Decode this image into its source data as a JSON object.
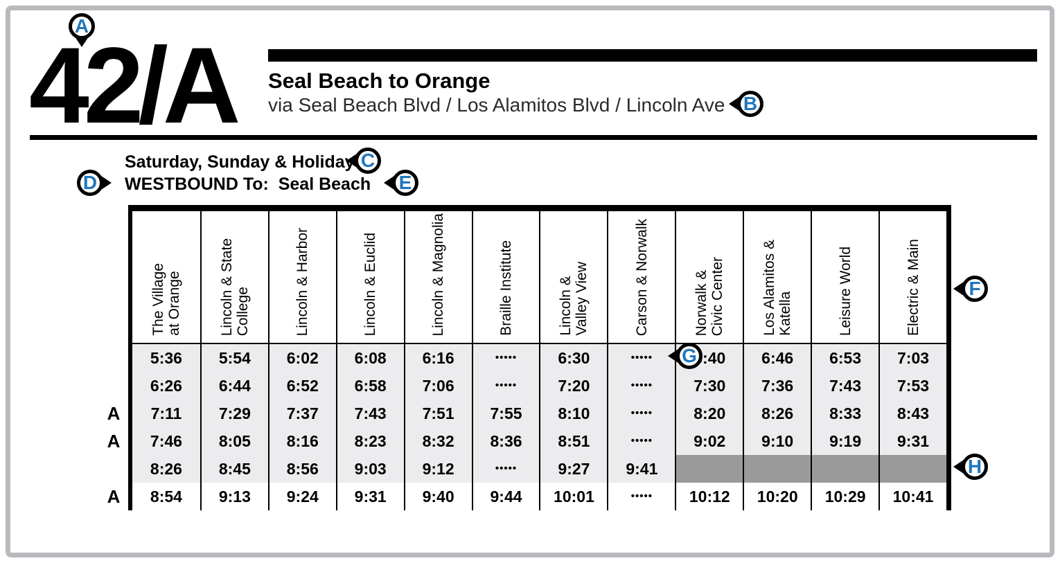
{
  "route": {
    "number": "42/A",
    "title": "Seal Beach to Orange",
    "subtitle": "via Seal Beach Blvd / Los Alamitos Blvd / Lincoln Ave"
  },
  "schedule": {
    "service_label": "Saturday, Sunday & Holiday",
    "direction_label": "WESTBOUND To:  Seal Beach"
  },
  "callouts": [
    {
      "label": "A"
    },
    {
      "label": "B"
    },
    {
      "label": "C"
    },
    {
      "label": "D"
    },
    {
      "label": "E"
    },
    {
      "label": "F"
    },
    {
      "label": "G"
    },
    {
      "label": "H"
    }
  ],
  "table": {
    "columns": [
      "The Village\nat Orange",
      "Lincoln & State\nCollege",
      "Lincoln & Harbor",
      "Lincoln & Euclid",
      "Lincoln & Magnolia",
      "Braille Institute",
      "Lincoln &\nValley View",
      "Carson & Norwalk",
      "Norwalk &\nCivic Center",
      "Los Alamitos &\nKatella",
      "Leisure World",
      "Electric & Main"
    ],
    "no_stop_symbol": "•••••",
    "rows": [
      {
        "flag": "",
        "shaded": true,
        "times": [
          "5:36",
          "5:54",
          "6:02",
          "6:08",
          "6:16",
          "•••••",
          "6:30",
          "•••••",
          "6:40",
          "6:46",
          "6:53",
          "7:03"
        ]
      },
      {
        "flag": "",
        "shaded": true,
        "times": [
          "6:26",
          "6:44",
          "6:52",
          "6:58",
          "7:06",
          "•••••",
          "7:20",
          "•••••",
          "7:30",
          "7:36",
          "7:43",
          "7:53"
        ]
      },
      {
        "flag": "A",
        "shaded": true,
        "times": [
          "7:11",
          "7:29",
          "7:37",
          "7:43",
          "7:51",
          "7:55",
          "8:10",
          "•••••",
          "8:20",
          "8:26",
          "8:33",
          "8:43"
        ]
      },
      {
        "flag": "A",
        "shaded": true,
        "times": [
          "7:46",
          "8:05",
          "8:16",
          "8:23",
          "8:32",
          "8:36",
          "8:51",
          "•••••",
          "9:02",
          "9:10",
          "9:19",
          "9:31"
        ]
      },
      {
        "flag": "",
        "shaded": true,
        "gray_from": 8,
        "times": [
          "8:26",
          "8:45",
          "8:56",
          "9:03",
          "9:12",
          "•••••",
          "9:27",
          "9:41",
          "",
          "",
          "",
          ""
        ]
      },
      {
        "flag": "A",
        "shaded": false,
        "times": [
          "8:54",
          "9:13",
          "9:24",
          "9:31",
          "9:40",
          "9:44",
          "10:01",
          "•••••",
          "10:12",
          "10:20",
          "10:29",
          "10:41"
        ]
      }
    ]
  },
  "colors": {
    "accent_blue": "#1f76bd",
    "row_shade": "#ececee",
    "no_service_gray": "#9a9a9a",
    "frame_gray": "#b9babd",
    "ink": "#000000"
  }
}
